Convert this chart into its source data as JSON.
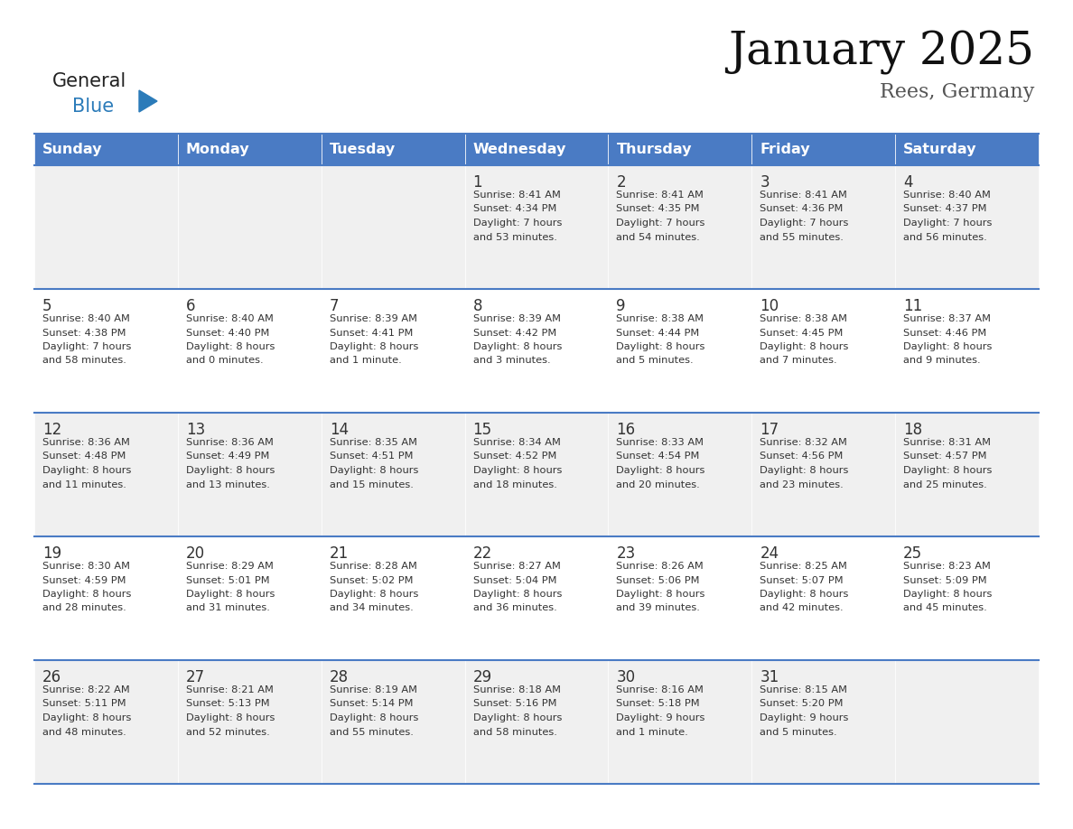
{
  "title": "January 2025",
  "subtitle": "Rees, Germany",
  "header_color": "#4A7BC4",
  "header_text_color": "#FFFFFF",
  "weekdays": [
    "Sunday",
    "Monday",
    "Tuesday",
    "Wednesday",
    "Thursday",
    "Friday",
    "Saturday"
  ],
  "bg_color_odd": "#F0F0F0",
  "bg_color_even": "#FFFFFF",
  "cell_text_color": "#333333",
  "title_color": "#111111",
  "subtitle_color": "#555555",
  "logo_general_color": "#222222",
  "logo_blue_color": "#2B7BB9",
  "separator_color": "#4A7BC4",
  "days": [
    {
      "day": 1,
      "col": 3,
      "row": 0,
      "sunrise": "8:41 AM",
      "sunset": "4:34 PM",
      "daylight_line1": "Daylight: 7 hours",
      "daylight_line2": "and 53 minutes."
    },
    {
      "day": 2,
      "col": 4,
      "row": 0,
      "sunrise": "8:41 AM",
      "sunset": "4:35 PM",
      "daylight_line1": "Daylight: 7 hours",
      "daylight_line2": "and 54 minutes."
    },
    {
      "day": 3,
      "col": 5,
      "row": 0,
      "sunrise": "8:41 AM",
      "sunset": "4:36 PM",
      "daylight_line1": "Daylight: 7 hours",
      "daylight_line2": "and 55 minutes."
    },
    {
      "day": 4,
      "col": 6,
      "row": 0,
      "sunrise": "8:40 AM",
      "sunset": "4:37 PM",
      "daylight_line1": "Daylight: 7 hours",
      "daylight_line2": "and 56 minutes."
    },
    {
      "day": 5,
      "col": 0,
      "row": 1,
      "sunrise": "8:40 AM",
      "sunset": "4:38 PM",
      "daylight_line1": "Daylight: 7 hours",
      "daylight_line2": "and 58 minutes."
    },
    {
      "day": 6,
      "col": 1,
      "row": 1,
      "sunrise": "8:40 AM",
      "sunset": "4:40 PM",
      "daylight_line1": "Daylight: 8 hours",
      "daylight_line2": "and 0 minutes."
    },
    {
      "day": 7,
      "col": 2,
      "row": 1,
      "sunrise": "8:39 AM",
      "sunset": "4:41 PM",
      "daylight_line1": "Daylight: 8 hours",
      "daylight_line2": "and 1 minute."
    },
    {
      "day": 8,
      "col": 3,
      "row": 1,
      "sunrise": "8:39 AM",
      "sunset": "4:42 PM",
      "daylight_line1": "Daylight: 8 hours",
      "daylight_line2": "and 3 minutes."
    },
    {
      "day": 9,
      "col": 4,
      "row": 1,
      "sunrise": "8:38 AM",
      "sunset": "4:44 PM",
      "daylight_line1": "Daylight: 8 hours",
      "daylight_line2": "and 5 minutes."
    },
    {
      "day": 10,
      "col": 5,
      "row": 1,
      "sunrise": "8:38 AM",
      "sunset": "4:45 PM",
      "daylight_line1": "Daylight: 8 hours",
      "daylight_line2": "and 7 minutes."
    },
    {
      "day": 11,
      "col": 6,
      "row": 1,
      "sunrise": "8:37 AM",
      "sunset": "4:46 PM",
      "daylight_line1": "Daylight: 8 hours",
      "daylight_line2": "and 9 minutes."
    },
    {
      "day": 12,
      "col": 0,
      "row": 2,
      "sunrise": "8:36 AM",
      "sunset": "4:48 PM",
      "daylight_line1": "Daylight: 8 hours",
      "daylight_line2": "and 11 minutes."
    },
    {
      "day": 13,
      "col": 1,
      "row": 2,
      "sunrise": "8:36 AM",
      "sunset": "4:49 PM",
      "daylight_line1": "Daylight: 8 hours",
      "daylight_line2": "and 13 minutes."
    },
    {
      "day": 14,
      "col": 2,
      "row": 2,
      "sunrise": "8:35 AM",
      "sunset": "4:51 PM",
      "daylight_line1": "Daylight: 8 hours",
      "daylight_line2": "and 15 minutes."
    },
    {
      "day": 15,
      "col": 3,
      "row": 2,
      "sunrise": "8:34 AM",
      "sunset": "4:52 PM",
      "daylight_line1": "Daylight: 8 hours",
      "daylight_line2": "and 18 minutes."
    },
    {
      "day": 16,
      "col": 4,
      "row": 2,
      "sunrise": "8:33 AM",
      "sunset": "4:54 PM",
      "daylight_line1": "Daylight: 8 hours",
      "daylight_line2": "and 20 minutes."
    },
    {
      "day": 17,
      "col": 5,
      "row": 2,
      "sunrise": "8:32 AM",
      "sunset": "4:56 PM",
      "daylight_line1": "Daylight: 8 hours",
      "daylight_line2": "and 23 minutes."
    },
    {
      "day": 18,
      "col": 6,
      "row": 2,
      "sunrise": "8:31 AM",
      "sunset": "4:57 PM",
      "daylight_line1": "Daylight: 8 hours",
      "daylight_line2": "and 25 minutes."
    },
    {
      "day": 19,
      "col": 0,
      "row": 3,
      "sunrise": "8:30 AM",
      "sunset": "4:59 PM",
      "daylight_line1": "Daylight: 8 hours",
      "daylight_line2": "and 28 minutes."
    },
    {
      "day": 20,
      "col": 1,
      "row": 3,
      "sunrise": "8:29 AM",
      "sunset": "5:01 PM",
      "daylight_line1": "Daylight: 8 hours",
      "daylight_line2": "and 31 minutes."
    },
    {
      "day": 21,
      "col": 2,
      "row": 3,
      "sunrise": "8:28 AM",
      "sunset": "5:02 PM",
      "daylight_line1": "Daylight: 8 hours",
      "daylight_line2": "and 34 minutes."
    },
    {
      "day": 22,
      "col": 3,
      "row": 3,
      "sunrise": "8:27 AM",
      "sunset": "5:04 PM",
      "daylight_line1": "Daylight: 8 hours",
      "daylight_line2": "and 36 minutes."
    },
    {
      "day": 23,
      "col": 4,
      "row": 3,
      "sunrise": "8:26 AM",
      "sunset": "5:06 PM",
      "daylight_line1": "Daylight: 8 hours",
      "daylight_line2": "and 39 minutes."
    },
    {
      "day": 24,
      "col": 5,
      "row": 3,
      "sunrise": "8:25 AM",
      "sunset": "5:07 PM",
      "daylight_line1": "Daylight: 8 hours",
      "daylight_line2": "and 42 minutes."
    },
    {
      "day": 25,
      "col": 6,
      "row": 3,
      "sunrise": "8:23 AM",
      "sunset": "5:09 PM",
      "daylight_line1": "Daylight: 8 hours",
      "daylight_line2": "and 45 minutes."
    },
    {
      "day": 26,
      "col": 0,
      "row": 4,
      "sunrise": "8:22 AM",
      "sunset": "5:11 PM",
      "daylight_line1": "Daylight: 8 hours",
      "daylight_line2": "and 48 minutes."
    },
    {
      "day": 27,
      "col": 1,
      "row": 4,
      "sunrise": "8:21 AM",
      "sunset": "5:13 PM",
      "daylight_line1": "Daylight: 8 hours",
      "daylight_line2": "and 52 minutes."
    },
    {
      "day": 28,
      "col": 2,
      "row": 4,
      "sunrise": "8:19 AM",
      "sunset": "5:14 PM",
      "daylight_line1": "Daylight: 8 hours",
      "daylight_line2": "and 55 minutes."
    },
    {
      "day": 29,
      "col": 3,
      "row": 4,
      "sunrise": "8:18 AM",
      "sunset": "5:16 PM",
      "daylight_line1": "Daylight: 8 hours",
      "daylight_line2": "and 58 minutes."
    },
    {
      "day": 30,
      "col": 4,
      "row": 4,
      "sunrise": "8:16 AM",
      "sunset": "5:18 PM",
      "daylight_line1": "Daylight: 9 hours",
      "daylight_line2": "and 1 minute."
    },
    {
      "day": 31,
      "col": 5,
      "row": 4,
      "sunrise": "8:15 AM",
      "sunset": "5:20 PM",
      "daylight_line1": "Daylight: 9 hours",
      "daylight_line2": "and 5 minutes."
    }
  ]
}
